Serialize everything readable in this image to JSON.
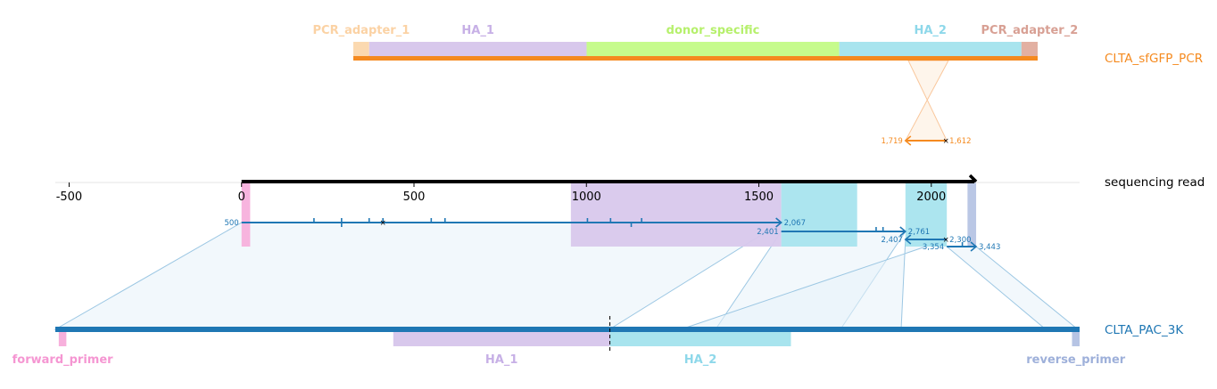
{
  "chart_data": {
    "type": "diagram",
    "axis": {
      "ticks": [
        "-500",
        "0",
        "500",
        "1000",
        "1500",
        "2000"
      ],
      "range": [
        -540,
        2430
      ]
    },
    "read": {
      "name": "sequencing read",
      "start": 0,
      "end": 2130,
      "highlights": [
        {
          "start": 0,
          "end": 25,
          "color": "#f7b0dc"
        },
        {
          "start": 955,
          "end": 1565,
          "color": "#d8c8ec"
        },
        {
          "start": 1565,
          "end": 1785,
          "color": "#a8e4ee"
        },
        {
          "start": 1925,
          "end": 2045,
          "color": "#a8e4ee"
        },
        {
          "start": 2105,
          "end": 2130,
          "color": "#b6c4e4"
        }
      ]
    },
    "targets": [
      {
        "name": "CLTA_sfGFP_PCR",
        "color": "#f58a1f",
        "start": 327,
        "end": 2310,
        "features": [
          {
            "name": "PCR_adapter_1",
            "start": 327,
            "end": 373,
            "color": "#fbd9b0",
            "label_color": "#fbd2a4"
          },
          {
            "name": "HA_1",
            "start": 373,
            "end": 1003,
            "color": "#d8c8ec",
            "label_color": "#c7b0e6"
          },
          {
            "name": "donor_specific",
            "start": 1003,
            "end": 1735,
            "color": "#c6fb8c",
            "label_color": "#b6f06c"
          },
          {
            "name": "HA_2",
            "start": 1735,
            "end": 2263,
            "color": "#a8e4ee",
            "label_color": "#8ed8ea"
          },
          {
            "name": "PCR_adapter_2",
            "start": 2263,
            "end": 2310,
            "color": "#e2b0a2",
            "label_color": "#d8a094"
          }
        ]
      },
      {
        "name": "CLTA_PAC_3K",
        "color": "#1f77b4",
        "start": -540,
        "end": 2430,
        "cut": 1068,
        "features": [
          {
            "name": "forward_primer",
            "start": -530,
            "end": -508,
            "color": "#f7b0dc",
            "label_color": "#f596d2"
          },
          {
            "name": "HA_1",
            "start": 440,
            "end": 1068,
            "color": "#d8c8ec",
            "label_color": "#c7b0e6"
          },
          {
            "name": "HA_2",
            "start": 1068,
            "end": 1593,
            "color": "#a8e4ee",
            "label_color": "#8ed8ea"
          },
          {
            "name": "reverse_primer",
            "start": 2408,
            "end": 2430,
            "color": "#b6c4e4",
            "label_color": "#9eb0da"
          }
        ]
      }
    ],
    "alignments": [
      {
        "target": "CLTA_PAC_3K",
        "read_start": 0,
        "read_end": 1565,
        "label_start": "500",
        "label_end": "2,067",
        "direction": "forward",
        "mismatches": [
          210,
          290,
          370,
          410,
          550,
          590,
          1003,
          1070,
          1160
        ],
        "deletions": [
          290,
          1130
        ],
        "insertions": [
          410
        ]
      },
      {
        "target": "CLTA_PAC_3K",
        "read_start": 1565,
        "read_end": 1925,
        "label_start": "2,401",
        "label_end": "2,761",
        "direction": "forward",
        "mismatches": [
          1840,
          1860
        ],
        "deletions": [],
        "insertions": []
      },
      {
        "target": "CLTA_PAC_3K",
        "read_start": 1925,
        "read_end": 2045,
        "label_start": "2,407",
        "label_end": "2,300",
        "direction": "reverse",
        "mismatches": [],
        "deletions": [],
        "insertions": []
      },
      {
        "target": "CLTA_PAC_3K",
        "read_start": 2045,
        "read_end": 2130,
        "label_start": "3,354",
        "label_end": "3,443",
        "direction": "forward",
        "mismatches": [
          2090
        ],
        "deletions": [],
        "insertions": []
      },
      {
        "target": "CLTA_sfGFP_PCR",
        "read_start": 1925,
        "read_end": 2045,
        "label_start": "1,719",
        "label_end": "1,612",
        "direction": "reverse",
        "mismatches": [],
        "deletions": [],
        "insertions": []
      }
    ],
    "grid": false
  }
}
